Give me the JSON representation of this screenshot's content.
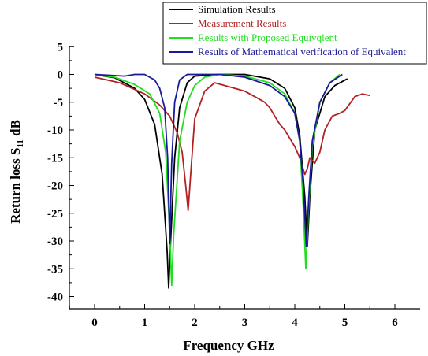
{
  "chart_data": {
    "type": "line",
    "title": "",
    "xlabel": "Frequency GHz",
    "ylabel_main": "Return loss S",
    "ylabel_sub": "11",
    "ylabel_unit": " dB",
    "xlim": [
      -0.5,
      6
    ],
    "ylim": [
      -42,
      5
    ],
    "x_ticks": [
      0,
      1,
      2,
      3,
      4,
      5,
      6
    ],
    "y_ticks": [
      5,
      0,
      -5,
      -10,
      -15,
      -20,
      -25,
      -30,
      -35,
      -40
    ],
    "grid": false,
    "legend_position": "top-right",
    "series": [
      {
        "name": "Simulation Results",
        "color": "#000000",
        "points": [
          [
            0,
            0
          ],
          [
            0.4,
            -0.6
          ],
          [
            0.8,
            -2.5
          ],
          [
            1.0,
            -4.5
          ],
          [
            1.2,
            -9
          ],
          [
            1.35,
            -18
          ],
          [
            1.45,
            -32
          ],
          [
            1.48,
            -38.5
          ],
          [
            1.52,
            -30
          ],
          [
            1.6,
            -15
          ],
          [
            1.7,
            -6
          ],
          [
            1.85,
            -1.5
          ],
          [
            2.0,
            -0.3
          ],
          [
            2.5,
            0
          ],
          [
            3.0,
            0
          ],
          [
            3.5,
            -0.8
          ],
          [
            3.8,
            -2.5
          ],
          [
            4.0,
            -6
          ],
          [
            4.1,
            -11
          ],
          [
            4.2,
            -22
          ],
          [
            4.25,
            -31
          ],
          [
            4.3,
            -22
          ],
          [
            4.4,
            -10
          ],
          [
            4.6,
            -4
          ],
          [
            4.8,
            -2
          ],
          [
            5.05,
            -0.8
          ]
        ]
      },
      {
        "name": "Measurement Results",
        "color": "#b22222",
        "points": [
          [
            0,
            -0.5
          ],
          [
            0.5,
            -1.5
          ],
          [
            1.0,
            -3.5
          ],
          [
            1.3,
            -5.5
          ],
          [
            1.5,
            -7.5
          ],
          [
            1.65,
            -10.5
          ],
          [
            1.75,
            -14
          ],
          [
            1.82,
            -20
          ],
          [
            1.87,
            -24.5
          ],
          [
            1.92,
            -18
          ],
          [
            2.0,
            -8
          ],
          [
            2.2,
            -3
          ],
          [
            2.4,
            -1.5
          ],
          [
            2.6,
            -2
          ],
          [
            2.8,
            -2.5
          ],
          [
            3.0,
            -3
          ],
          [
            3.2,
            -4
          ],
          [
            3.4,
            -5
          ],
          [
            3.5,
            -6
          ],
          [
            3.6,
            -7.5
          ],
          [
            3.7,
            -9
          ],
          [
            3.8,
            -10
          ],
          [
            3.9,
            -11.5
          ],
          [
            4.0,
            -13
          ],
          [
            4.1,
            -15
          ],
          [
            4.15,
            -16.5
          ],
          [
            4.2,
            -18
          ],
          [
            4.25,
            -17
          ],
          [
            4.3,
            -15
          ],
          [
            4.4,
            -16
          ],
          [
            4.5,
            -14
          ],
          [
            4.6,
            -10
          ],
          [
            4.75,
            -7.5
          ],
          [
            4.9,
            -7
          ],
          [
            5.0,
            -6.5
          ],
          [
            5.2,
            -4
          ],
          [
            5.35,
            -3.5
          ],
          [
            5.5,
            -3.8
          ]
        ]
      },
      {
        "name": "Results with Proposed Equivqlent",
        "color": "#22dd22",
        "points": [
          [
            0,
            0
          ],
          [
            0.4,
            -0.5
          ],
          [
            0.8,
            -1.8
          ],
          [
            1.1,
            -3.5
          ],
          [
            1.3,
            -7
          ],
          [
            1.42,
            -14
          ],
          [
            1.5,
            -28
          ],
          [
            1.54,
            -38
          ],
          [
            1.58,
            -29
          ],
          [
            1.7,
            -12
          ],
          [
            1.85,
            -5
          ],
          [
            2.0,
            -2
          ],
          [
            2.2,
            -0.5
          ],
          [
            2.5,
            0
          ],
          [
            3.0,
            -0.3
          ],
          [
            3.5,
            -1.5
          ],
          [
            3.8,
            -3.5
          ],
          [
            4.0,
            -7
          ],
          [
            4.1,
            -12
          ],
          [
            4.17,
            -24
          ],
          [
            4.22,
            -35
          ],
          [
            4.27,
            -25
          ],
          [
            4.35,
            -13
          ],
          [
            4.5,
            -5
          ],
          [
            4.7,
            -1.5
          ],
          [
            4.9,
            0
          ]
        ]
      },
      {
        "name": "Results of Mathematical verification of Equivalent",
        "color": "#1a1a99",
        "points": [
          [
            0,
            0
          ],
          [
            0.6,
            -0.3
          ],
          [
            0.8,
            0
          ],
          [
            1.0,
            0
          ],
          [
            1.2,
            -1
          ],
          [
            1.3,
            -2.5
          ],
          [
            1.4,
            -6
          ],
          [
            1.46,
            -15
          ],
          [
            1.5,
            -30.5
          ],
          [
            1.54,
            -16
          ],
          [
            1.6,
            -5
          ],
          [
            1.7,
            -1
          ],
          [
            1.85,
            0
          ],
          [
            2.5,
            0
          ],
          [
            3.0,
            -0.5
          ],
          [
            3.5,
            -2
          ],
          [
            3.8,
            -4
          ],
          [
            4.0,
            -7
          ],
          [
            4.1,
            -12
          ],
          [
            4.17,
            -20
          ],
          [
            4.23,
            -31
          ],
          [
            4.28,
            -22
          ],
          [
            4.35,
            -12
          ],
          [
            4.5,
            -5
          ],
          [
            4.7,
            -1.5
          ],
          [
            4.95,
            0
          ]
        ]
      }
    ]
  }
}
